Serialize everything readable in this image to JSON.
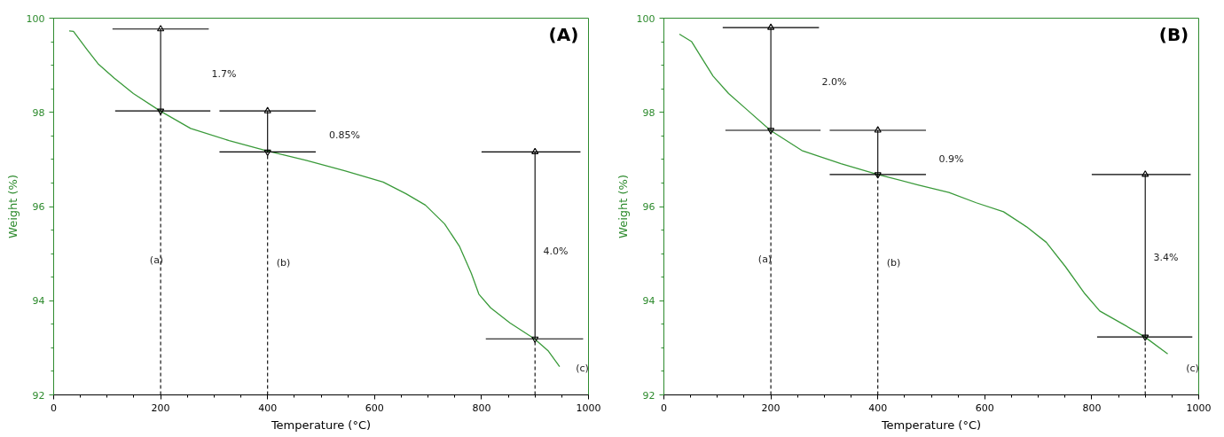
{
  "chart_data": [
    {
      "type": "line",
      "title": "(A)",
      "xlabel": "Temperature (°C)",
      "ylabel": "Weight (%)",
      "xlim": [
        0,
        1000
      ],
      "ylim": [
        92,
        100
      ],
      "xticks": [
        0,
        200,
        400,
        600,
        800,
        1000
      ],
      "yticks": [
        92,
        94,
        96,
        98,
        100
      ],
      "grid": false,
      "series": [
        {
          "color": "#3a9a3a",
          "x": [
            29,
            37,
            62,
            84,
            113,
            149,
            199,
            256,
            328,
            400,
            472,
            544,
            616,
            659,
            695,
            731,
            759,
            781,
            795,
            817,
            853,
            899,
            925,
            946
          ],
          "values": [
            99.73,
            99.72,
            99.34,
            99.02,
            98.73,
            98.4,
            98.03,
            97.66,
            97.4,
            97.18,
            96.98,
            96.76,
            96.52,
            96.27,
            96.03,
            95.63,
            95.15,
            94.58,
            94.14,
            93.85,
            93.53,
            93.19,
            92.93,
            92.6
          ]
        },
        {
          "color": "#000000",
          "x": [
            110,
            290
          ],
          "values": [
            99.77,
            99.77
          ]
        },
        {
          "color": "#000000",
          "x": [
            115,
            293
          ],
          "values": [
            98.03,
            98.03
          ]
        },
        {
          "color": "#000000",
          "x": [
            310,
            490
          ],
          "values": [
            98.03,
            98.03
          ]
        },
        {
          "color": "#000000",
          "x": [
            310,
            490
          ],
          "values": [
            97.16,
            97.16
          ]
        },
        {
          "color": "#000000",
          "x": [
            800,
            985
          ],
          "values": [
            97.16,
            97.16
          ]
        },
        {
          "color": "#000000",
          "x": [
            808,
            990
          ],
          "values": [
            93.19,
            93.19
          ]
        },
        {
          "color": "#000000",
          "x": [
            200,
            200
          ],
          "values": [
            98.03,
            99.77
          ],
          "marker": "triangle"
        },
        {
          "color": "#000000",
          "x": [
            400,
            400
          ],
          "values": [
            97.16,
            98.03
          ],
          "marker": "triangle"
        },
        {
          "color": "#000000",
          "x": [
            900,
            900
          ],
          "values": [
            93.19,
            97.16
          ],
          "marker": "triangle"
        },
        {
          "color": "#000000",
          "x": [
            200,
            200
          ],
          "values": [
            92,
            98.03
          ],
          "line_style": "dashed"
        },
        {
          "color": "#000000",
          "x": [
            400,
            400
          ],
          "values": [
            92,
            97.16
          ],
          "line_style": "dashed"
        },
        {
          "color": "#000000",
          "x": [
            900,
            900
          ],
          "values": [
            92,
            93.19
          ],
          "line_style": "dashed"
        }
      ],
      "annotations": [
        "1.7%",
        "0.85%",
        "4.0%",
        "(a)",
        "(b)",
        "(c)"
      ]
    },
    {
      "type": "line",
      "title": "(B)",
      "xlabel": "Temperature (°C)",
      "ylabel": "Weight (%)",
      "xlim": [
        0,
        1000
      ],
      "ylim": [
        92,
        100
      ],
      "xticks": [
        0,
        200,
        400,
        600,
        800,
        1000
      ],
      "yticks": [
        92,
        94,
        96,
        98,
        100
      ],
      "grid": false,
      "series": [
        {
          "color": "#3a9a3a",
          "x": [
            29,
            52,
            70,
            92,
            121,
            157,
            199,
            258,
            331,
            400,
            475,
            533,
            584,
            635,
            678,
            715,
            751,
            787,
            815,
            859,
            898,
            942
          ],
          "values": [
            99.66,
            99.5,
            99.17,
            98.77,
            98.4,
            98.04,
            97.62,
            97.19,
            96.91,
            96.68,
            96.46,
            96.3,
            96.08,
            95.89,
            95.57,
            95.24,
            94.72,
            94.15,
            93.78,
            93.5,
            93.24,
            92.87
          ]
        },
        {
          "color": "#000000",
          "x": [
            110,
            290
          ],
          "values": [
            99.8,
            99.8
          ]
        },
        {
          "color": "#000000",
          "x": [
            115,
            293
          ],
          "values": [
            97.62,
            97.62
          ]
        },
        {
          "color": "#000000",
          "x": [
            310,
            490
          ],
          "values": [
            97.62,
            97.62
          ]
        },
        {
          "color": "#000000",
          "x": [
            310,
            490
          ],
          "values": [
            96.68,
            96.68
          ]
        },
        {
          "color": "#000000",
          "x": [
            800,
            985
          ],
          "values": [
            96.68,
            96.68
          ]
        },
        {
          "color": "#000000",
          "x": [
            810,
            988
          ],
          "values": [
            93.23,
            93.23
          ]
        },
        {
          "color": "#000000",
          "x": [
            200,
            200
          ],
          "values": [
            97.62,
            99.8
          ],
          "marker": "triangle"
        },
        {
          "color": "#000000",
          "x": [
            400,
            400
          ],
          "values": [
            96.68,
            97.62
          ],
          "marker": "triangle"
        },
        {
          "color": "#000000",
          "x": [
            900,
            900
          ],
          "values": [
            93.23,
            96.68
          ],
          "marker": "triangle"
        },
        {
          "color": "#000000",
          "x": [
            200,
            200
          ],
          "values": [
            92,
            97.62
          ],
          "line_style": "dashed"
        },
        {
          "color": "#000000",
          "x": [
            400,
            400
          ],
          "values": [
            92,
            96.68
          ],
          "line_style": "dashed"
        },
        {
          "color": "#000000",
          "x": [
            900,
            900
          ],
          "values": [
            92,
            93.23
          ],
          "line_style": "dashed"
        }
      ],
      "annotations": [
        "2.0%",
        "0.9%",
        "3.4%",
        "(a)",
        "(b)",
        "(c)"
      ]
    }
  ]
}
